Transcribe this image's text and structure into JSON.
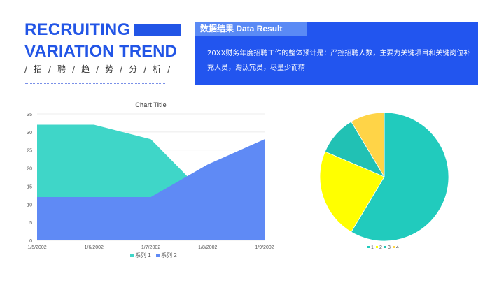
{
  "header": {
    "title_line1": "RECRUITING",
    "title_line2": "VARIATION TREND",
    "subtitle": "/招/聘/趋/势/分/析/"
  },
  "result_box": {
    "heading": "数据结果   Data Result",
    "text": "20XX财务年度招聘工作的整体预计是：严控招聘人数，主要为关键项目和关键岗位补充人员，淘汰冗员，尽量少而精"
  },
  "chart_data": [
    {
      "type": "area",
      "title": "Chart Title",
      "categories": [
        "1/5/2002",
        "1/6/2002",
        "1/7/2002",
        "1/8/2002",
        "1/9/2002"
      ],
      "ylim": [
        0,
        35
      ],
      "yticks": [
        0,
        5,
        10,
        15,
        20,
        25,
        30,
        35
      ],
      "grid": true,
      "legend": "bottom",
      "series": [
        {
          "name": "系列 1",
          "values": [
            32,
            32,
            28,
            12,
            15
          ],
          "color": "#3fd6c8"
        },
        {
          "name": "系列 2",
          "values": [
            12,
            12,
            12,
            21,
            28
          ],
          "color": "#5f8af5"
        }
      ]
    },
    {
      "type": "pie",
      "categories": [
        "1",
        "2",
        "3",
        "4"
      ],
      "values": [
        8.2,
        3.2,
        1.4,
        1.2
      ],
      "colors": [
        "#21cbbd",
        "#ffff00",
        "#21c1b4",
        "#ffd447"
      ],
      "legend": "bottom"
    }
  ]
}
